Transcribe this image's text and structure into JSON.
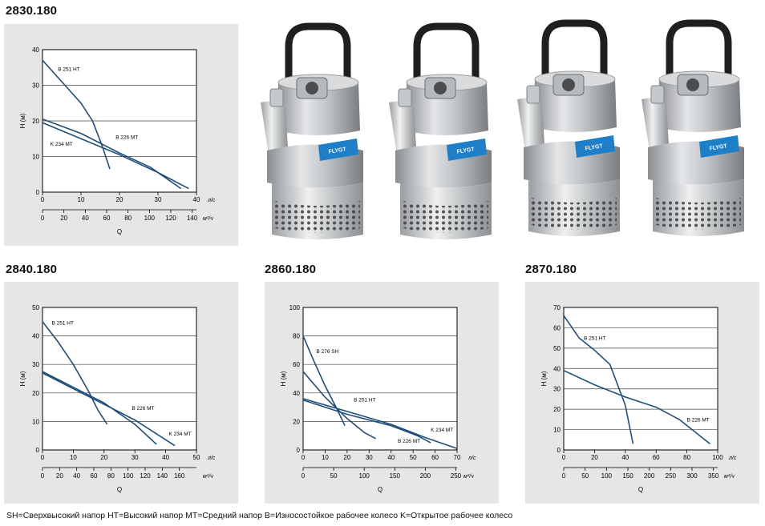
{
  "footer_note": "SH=Сверхвысокий напор  HT=Высокий напор  MT=Средний напор  B=Износостойкое рабочее колесо  K=Открытое рабочее колесо",
  "colors": {
    "panel_bg": "#e6e6e6",
    "curve": "#1f4e79",
    "grid": "#444444"
  },
  "chart_data": [
    {
      "type": "line",
      "title": "2830.180",
      "ylabel": "H (м)",
      "xlabel": "Q",
      "x_unit": "л/с",
      "x2_unit": "м³/ч",
      "ylim": [
        0,
        40
      ],
      "xlim": [
        0,
        40
      ],
      "yticks": [
        0,
        10,
        20,
        30,
        40
      ],
      "xticks": [
        0,
        10,
        20,
        30,
        40
      ],
      "x2ticks": [
        0,
        20,
        40,
        60,
        80,
        100,
        120,
        140
      ],
      "x2_scale": 3.6,
      "series": [
        {
          "name": "B 251 HT",
          "points": [
            [
              0,
              37
            ],
            [
              5,
              31
            ],
            [
              10,
              25
            ],
            [
              13,
              20
            ],
            [
              15.5,
              13
            ],
            [
              17.5,
              6.5
            ]
          ],
          "label_at": [
            4,
            34
          ]
        },
        {
          "name": "B 226 MT",
          "points": [
            [
              0,
              20.5
            ],
            [
              10,
              16.5
            ],
            [
              20,
              11
            ],
            [
              28,
              7
            ],
            [
              36,
              1
            ]
          ],
          "label_at": [
            19,
            15
          ]
        },
        {
          "name": "K 234 MT",
          "points": [
            [
              0,
              19.5
            ],
            [
              10,
              15
            ],
            [
              20,
              10.5
            ],
            [
              30,
              5.5
            ],
            [
              38,
              1
            ]
          ],
          "label_at": [
            2,
            13
          ]
        }
      ]
    },
    {
      "type": "line",
      "title": "2840.180",
      "ylabel": "H (м)",
      "xlabel": "Q",
      "x_unit": "л/с",
      "x2_unit": "м³/ч",
      "ylim": [
        0,
        50
      ],
      "xlim": [
        0,
        50
      ],
      "yticks": [
        0,
        10,
        20,
        30,
        40,
        50
      ],
      "xticks": [
        0,
        10,
        20,
        30,
        40,
        50
      ],
      "x2ticks": [
        0,
        20,
        40,
        60,
        80,
        100,
        120,
        140,
        160
      ],
      "x2_scale": 3.6,
      "series": [
        {
          "name": "B 251 HT",
          "points": [
            [
              0,
              45
            ],
            [
              5,
              38
            ],
            [
              10,
              30
            ],
            [
              15,
              20.5
            ],
            [
              18,
              14
            ],
            [
              21,
              9
            ]
          ],
          "label_at": [
            3,
            44
          ]
        },
        {
          "name": "B 226 MT",
          "points": [
            [
              0,
              27.5
            ],
            [
              10,
              22
            ],
            [
              20,
              16.5
            ],
            [
              30,
              9
            ],
            [
              37,
              2
            ]
          ],
          "label_at": [
            29,
            14
          ]
        },
        {
          "name": "K 234 MT",
          "points": [
            [
              0,
              27
            ],
            [
              10,
              21.5
            ],
            [
              20,
              16
            ],
            [
              30,
              10.5
            ],
            [
              43,
              1.5
            ]
          ],
          "label_at": [
            41,
            5
          ]
        }
      ]
    },
    {
      "type": "line",
      "title": "2860.180",
      "ylabel": "H (м)",
      "xlabel": "Q",
      "x_unit": "л/с",
      "x2_unit": "м³/ч",
      "ylim": [
        0,
        100
      ],
      "xlim": [
        0,
        70
      ],
      "yticks": [
        0,
        20,
        40,
        60,
        80,
        100
      ],
      "xticks": [
        0,
        10,
        20,
        30,
        40,
        50,
        60,
        70
      ],
      "x2ticks": [
        0,
        50,
        100,
        150,
        200,
        250
      ],
      "x2_scale": 3.6,
      "series": [
        {
          "name": "B 276 SH",
          "points": [
            [
              0,
              80
            ],
            [
              5,
              62
            ],
            [
              10,
              45
            ],
            [
              15,
              30
            ],
            [
              19,
              17
            ]
          ],
          "label_at": [
            6,
            68
          ]
        },
        {
          "name": "B 251 HT",
          "points": [
            [
              0,
              55
            ],
            [
              10,
              37
            ],
            [
              20,
              22
            ],
            [
              28,
              12
            ],
            [
              33,
              8
            ]
          ],
          "label_at": [
            23,
            34
          ]
        },
        {
          "name": "B 226 MT",
          "points": [
            [
              0,
              35
            ],
            [
              20,
              25
            ],
            [
              40,
              17
            ],
            [
              52,
              10
            ],
            [
              58,
              5
            ]
          ],
          "label_at": [
            43,
            5
          ]
        },
        {
          "name": "K 234 MT",
          "points": [
            [
              0,
              36
            ],
            [
              20,
              27
            ],
            [
              40,
              18
            ],
            [
              55,
              9
            ],
            [
              70,
              1
            ]
          ],
          "label_at": [
            58,
            13
          ]
        }
      ]
    },
    {
      "type": "line",
      "title": "2870.180",
      "ylabel": "H (м)",
      "xlabel": "Q",
      "x_unit": "л/с",
      "x2_unit": "м³/ч",
      "ylim": [
        0,
        70
      ],
      "xlim": [
        0,
        100
      ],
      "yticks": [
        0,
        10,
        20,
        30,
        40,
        50,
        60,
        70
      ],
      "xticks": [
        0,
        20,
        40,
        60,
        80,
        100
      ],
      "x2ticks": [
        0,
        50,
        100,
        150,
        200,
        250,
        300,
        350
      ],
      "x2_scale": 3.6,
      "series": [
        {
          "name": "B 251 HT",
          "points": [
            [
              0,
              66
            ],
            [
              10,
              55
            ],
            [
              20,
              49
            ],
            [
              30,
              42
            ],
            [
              40,
              22
            ],
            [
              45,
              3
            ]
          ],
          "label_at": [
            13,
            54
          ]
        },
        {
          "name": "B 226 MT",
          "points": [
            [
              0,
              39
            ],
            [
              20,
              32
            ],
            [
              40,
              26
            ],
            [
              60,
              21
            ],
            [
              75,
              15
            ],
            [
              95,
              3
            ]
          ],
          "label_at": [
            80,
            14
          ]
        }
      ]
    }
  ]
}
